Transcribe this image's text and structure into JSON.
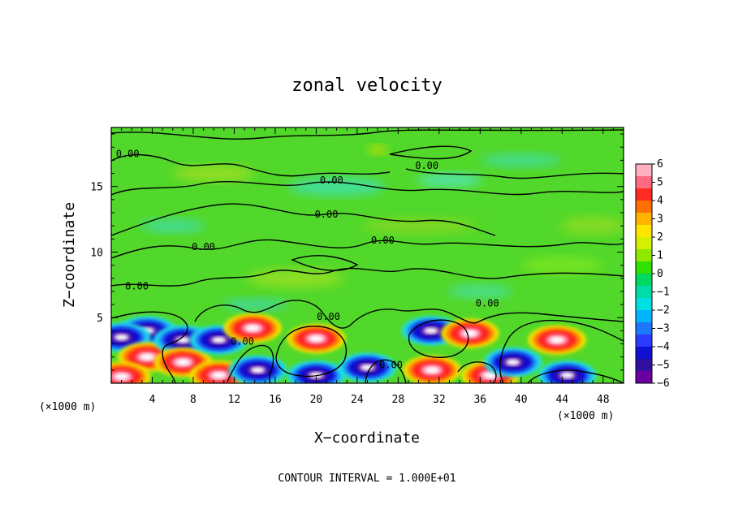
{
  "chart_data": {
    "type": "heatmap",
    "title": "zonal velocity",
    "xlabel": "X−coordinate",
    "ylabel": "Z−coordinate",
    "x_unit_left": "(×1000 m)",
    "x_unit_right": "(×1000 m)",
    "x_range": [
      0,
      50
    ],
    "y_range": [
      0,
      19.5
    ],
    "x_ticks": [
      4,
      8,
      12,
      16,
      20,
      24,
      28,
      32,
      36,
      40,
      44,
      48
    ],
    "y_ticks": [
      5,
      10,
      15
    ],
    "colorbar": {
      "range": [
        -6,
        6
      ],
      "ticks": [
        "6",
        "5",
        "4",
        "3",
        "2",
        "1",
        "0",
        "−1",
        "−2",
        "−3",
        "−4",
        "−5",
        "−6"
      ]
    },
    "contour_levels": [
      0
    ],
    "contour_labels": [
      {
        "text": "0.00",
        "x": 1.6,
        "y": 17.3
      },
      {
        "text": "0.00",
        "x": 21.5,
        "y": 15.3
      },
      {
        "text": "0.00",
        "x": 30.8,
        "y": 16.4
      },
      {
        "text": "0.00",
        "x": 21.0,
        "y": 12.7
      },
      {
        "text": "0.00",
        "x": 26.5,
        "y": 10.7
      },
      {
        "text": "0.00",
        "x": 9.0,
        "y": 10.2
      },
      {
        "text": "0.00",
        "x": 2.5,
        "y": 7.2
      },
      {
        "text": "0.00",
        "x": 36.7,
        "y": 5.9
      },
      {
        "text": "0.00",
        "x": 21.2,
        "y": 4.9
      },
      {
        "text": "0.00",
        "x": 12.8,
        "y": 3.0
      },
      {
        "text": "0.00",
        "x": 27.3,
        "y": 1.2
      }
    ],
    "strong_cells": [
      {
        "x": 3.5,
        "y": 4.0,
        "sign": "negative"
      },
      {
        "x": 1.0,
        "y": 3.5,
        "sign": "negative"
      },
      {
        "x": 3.5,
        "y": 2.0,
        "sign": "positive"
      },
      {
        "x": 1.0,
        "y": 0.5,
        "sign": "positive"
      },
      {
        "x": 7.0,
        "y": 3.3,
        "sign": "negative"
      },
      {
        "x": 7.0,
        "y": 1.6,
        "sign": "positive"
      },
      {
        "x": 10.5,
        "y": 0.6,
        "sign": "positive"
      },
      {
        "x": 10.5,
        "y": 3.3,
        "sign": "negative"
      },
      {
        "x": 13.8,
        "y": 4.2,
        "sign": "positive"
      },
      {
        "x": 14.3,
        "y": 1.0,
        "sign": "negative"
      },
      {
        "x": 20.0,
        "y": 3.4,
        "sign": "positive"
      },
      {
        "x": 20.0,
        "y": 0.6,
        "sign": "negative"
      },
      {
        "x": 25.0,
        "y": 1.2,
        "sign": "negative"
      },
      {
        "x": 31.2,
        "y": 4.0,
        "sign": "negative"
      },
      {
        "x": 31.3,
        "y": 1.0,
        "sign": "positive"
      },
      {
        "x": 35.0,
        "y": 3.8,
        "sign": "positive"
      },
      {
        "x": 37.0,
        "y": 0.6,
        "sign": "positive"
      },
      {
        "x": 43.5,
        "y": 3.3,
        "sign": "positive"
      },
      {
        "x": 44.5,
        "y": 0.6,
        "sign": "negative"
      },
      {
        "x": 39.2,
        "y": 1.6,
        "sign": "negative"
      }
    ],
    "grid": false,
    "legend": "colorbar-right",
    "footnote": "CONTOUR INTERVAL = 1.000E+01"
  }
}
